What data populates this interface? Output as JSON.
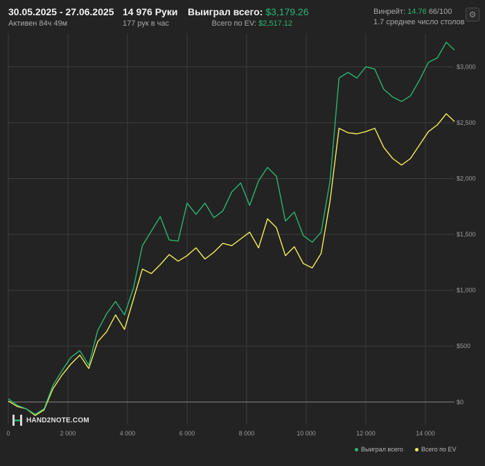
{
  "header": {
    "date_range": "30.05.2025 - 27.06.2025",
    "active_time": "Активен 84ч 49м",
    "hands_label": "14 976 Руки",
    "hands_per_hour": "177 рук в час",
    "won_total_label": "Выиграл всего:",
    "won_total_value": "$3,179.26",
    "ev_total_label": "Всего по EV:",
    "ev_total_value": "$2,517.12",
    "winrate_label": "Винрейт:",
    "winrate_value": "14.76",
    "winrate_sample": "66/100",
    "avg_tables": "1.7 среднее число столов"
  },
  "logo": {
    "text": "HAND2NOTE.COM"
  },
  "icons": {
    "settings": "gear-icon"
  },
  "colors": {
    "background": "#232323",
    "won_series": "#2bb673",
    "ev_series": "#f4f05a",
    "grid": "#3d3d3d",
    "zero_line": "#8a8a8a"
  },
  "chart_data": {
    "type": "line",
    "xlim": [
      0,
      14976
    ],
    "ylim": [
      -200,
      3300
    ],
    "x_ticks": [
      0,
      2000,
      4000,
      6000,
      8000,
      10000,
      12000,
      14000
    ],
    "x_tick_labels": [
      "0",
      "2 000",
      "4 000",
      "6 000",
      "8 000",
      "10 000",
      "12 000",
      "14 000"
    ],
    "y_ticks": [
      0,
      500,
      1000,
      1500,
      2000,
      2500,
      3000
    ],
    "y_tick_labels": [
      "$0",
      "$500",
      "$1,000",
      "$1,500",
      "$2,000",
      "$2,500",
      "$3,000"
    ],
    "grid": true,
    "legend_position": "bottom-right",
    "x": [
      0,
      300,
      600,
      900,
      1200,
      1500,
      1800,
      2100,
      2400,
      2700,
      3000,
      3300,
      3600,
      3900,
      4200,
      4500,
      4800,
      5100,
      5400,
      5700,
      6000,
      6300,
      6600,
      6900,
      7200,
      7500,
      7800,
      8100,
      8400,
      8700,
      9000,
      9300,
      9600,
      9900,
      10200,
      10500,
      10800,
      11100,
      11400,
      11700,
      12000,
      12300,
      12600,
      12900,
      13200,
      13500,
      13800,
      14100,
      14400,
      14700,
      14976
    ],
    "series": [
      {
        "name": "Выиграл всего",
        "values": [
          30,
          -30,
          -60,
          -110,
          -60,
          150,
          280,
          400,
          460,
          330,
          640,
          790,
          900,
          780,
          1020,
          1400,
          1530,
          1660,
          1450,
          1440,
          1780,
          1680,
          1780,
          1650,
          1710,
          1880,
          1960,
          1760,
          1980,
          2100,
          2020,
          1620,
          1700,
          1490,
          1430,
          1520,
          1980,
          2900,
          2950,
          2900,
          3000,
          2980,
          2800,
          2730,
          2690,
          2740,
          2880,
          3040,
          3080,
          3220,
          3150
        ]
      },
      {
        "name": "Всего по EV",
        "values": [
          10,
          -40,
          -60,
          -120,
          -70,
          120,
          240,
          340,
          420,
          300,
          540,
          630,
          780,
          650,
          920,
          1190,
          1150,
          1230,
          1320,
          1260,
          1310,
          1380,
          1280,
          1340,
          1420,
          1400,
          1460,
          1520,
          1380,
          1640,
          1560,
          1310,
          1390,
          1240,
          1200,
          1330,
          1800,
          2450,
          2410,
          2400,
          2420,
          2450,
          2280,
          2180,
          2120,
          2180,
          2300,
          2420,
          2480,
          2580,
          2510
        ]
      }
    ]
  }
}
